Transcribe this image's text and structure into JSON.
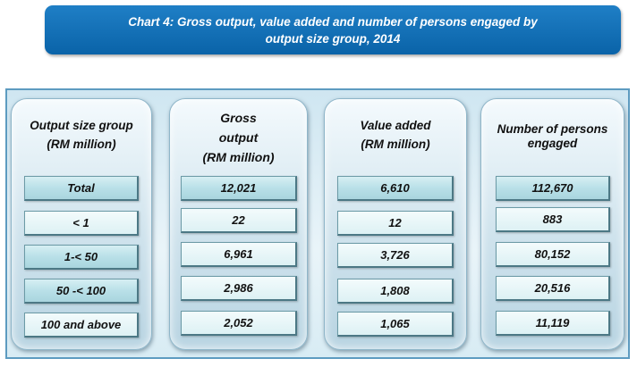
{
  "title": {
    "line1": "Chart 4: Gross output, value added and number of persons engaged by",
    "line2": "output  size group, 2014"
  },
  "chart_data": {
    "type": "table",
    "columns": [
      {
        "header_lines": [
          "Output size group",
          "(RM million)"
        ]
      },
      {
        "header_lines": [
          "Gross",
          "output",
          "(RM million)"
        ]
      },
      {
        "header_lines": [
          "Value added",
          "(RM million)"
        ]
      },
      {
        "header_lines": [
          "Number of persons",
          "engaged"
        ]
      }
    ],
    "rows": [
      {
        "group": "Total",
        "gross_output": "12,021",
        "value_added": "6,610",
        "persons_engaged": "112,670"
      },
      {
        "group": "< 1",
        "gross_output": "22",
        "value_added": "12",
        "persons_engaged": "883"
      },
      {
        "group": "1-< 50",
        "gross_output": "6,961",
        "value_added": "3,726",
        "persons_engaged": "80,152"
      },
      {
        "group": "50 -< 100",
        "gross_output": "2,986",
        "value_added": "1,808",
        "persons_engaged": "20,516"
      },
      {
        "group": "100 and above",
        "gross_output": "2,052",
        "value_added": "1,065",
        "persons_engaged": "11,119"
      }
    ]
  },
  "colors": {
    "banner": "#0a63a8",
    "frame_border": "#5d9bc0",
    "cell_fill": "#b9e0e8",
    "cell_light_fill": "#ddf1f4"
  }
}
